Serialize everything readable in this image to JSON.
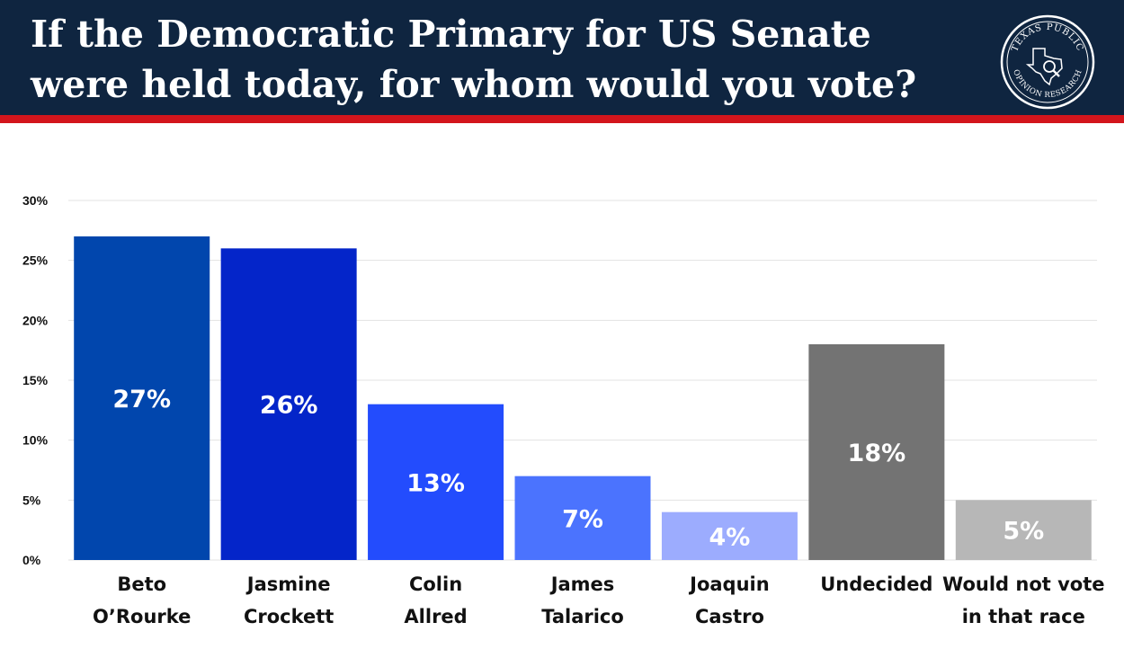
{
  "header": {
    "title": "If the Democratic Primary for US Senate were held today, for whom would you vote?",
    "logo_top_text": "TEXAS PUBLIC",
    "logo_bottom_text": "OPINION RESEARCH",
    "logo_icon": "texas-magnifier-icon",
    "background_color": "#0f2540",
    "stripe_color": "#d3151c"
  },
  "chart_data": {
    "type": "bar",
    "title": "",
    "xlabel": "",
    "ylabel": "",
    "ylim": [
      0,
      30
    ],
    "yticks": [
      0,
      5,
      10,
      15,
      20,
      25,
      30
    ],
    "ytick_labels": [
      "0%",
      "5%",
      "10%",
      "15%",
      "20%",
      "25%",
      "30%"
    ],
    "grid": true,
    "legend": "none",
    "categories": [
      [
        "Beto",
        "O’Rourke"
      ],
      [
        "Jasmine",
        "Crockett"
      ],
      [
        "Colin",
        "Allred"
      ],
      [
        "James",
        "Talarico"
      ],
      [
        "Joaquin",
        "Castro"
      ],
      [
        "Undecided"
      ],
      [
        "Would not vote",
        "in that race"
      ]
    ],
    "values": [
      27,
      26,
      13,
      7,
      4,
      18,
      5
    ],
    "data_labels": [
      "27%",
      "26%",
      "13%",
      "7%",
      "4%",
      "18%",
      "5%"
    ],
    "colors": [
      "#0146ad",
      "#0425c9",
      "#234cfd",
      "#4b73fe",
      "#9cacfe",
      "#737373",
      "#b7b7b7"
    ]
  }
}
